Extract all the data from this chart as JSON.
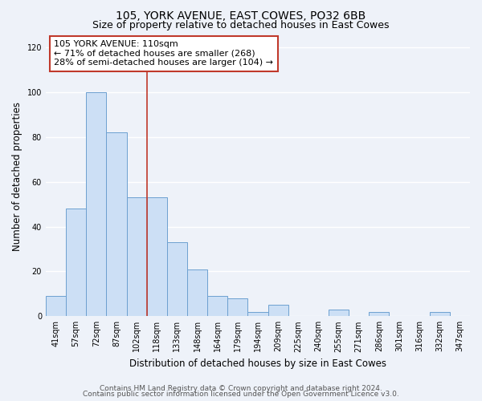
{
  "title": "105, YORK AVENUE, EAST COWES, PO32 6BB",
  "subtitle": "Size of property relative to detached houses in East Cowes",
  "xlabel": "Distribution of detached houses by size in East Cowes",
  "ylabel": "Number of detached properties",
  "categories": [
    "41sqm",
    "57sqm",
    "72sqm",
    "87sqm",
    "102sqm",
    "118sqm",
    "133sqm",
    "148sqm",
    "164sqm",
    "179sqm",
    "194sqm",
    "209sqm",
    "225sqm",
    "240sqm",
    "255sqm",
    "271sqm",
    "286sqm",
    "301sqm",
    "316sqm",
    "332sqm",
    "347sqm"
  ],
  "values": [
    9,
    48,
    100,
    82,
    53,
    53,
    33,
    21,
    9,
    8,
    2,
    5,
    0,
    0,
    3,
    0,
    2,
    0,
    0,
    2,
    0
  ],
  "bar_color": "#ccdff5",
  "bar_edge_color": "#6da0d0",
  "marker_line_color": "#c0392b",
  "annotation_line1": "105 YORK AVENUE: 110sqm",
  "annotation_line2": "← 71% of detached houses are smaller (268)",
  "annotation_line3": "28% of semi-detached houses are larger (104) →",
  "annotation_box_color": "#ffffff",
  "annotation_box_edge": "#c0392b",
  "ylim": [
    0,
    125
  ],
  "yticks": [
    0,
    20,
    40,
    60,
    80,
    100,
    120
  ],
  "footer_line1": "Contains HM Land Registry data © Crown copyright and database right 2024.",
  "footer_line2": "Contains public sector information licensed under the Open Government Licence v3.0.",
  "background_color": "#eef2f9",
  "grid_color": "#ffffff",
  "title_fontsize": 10,
  "subtitle_fontsize": 9,
  "axis_label_fontsize": 8.5,
  "tick_fontsize": 7,
  "annotation_fontsize": 8,
  "footer_fontsize": 6.5
}
